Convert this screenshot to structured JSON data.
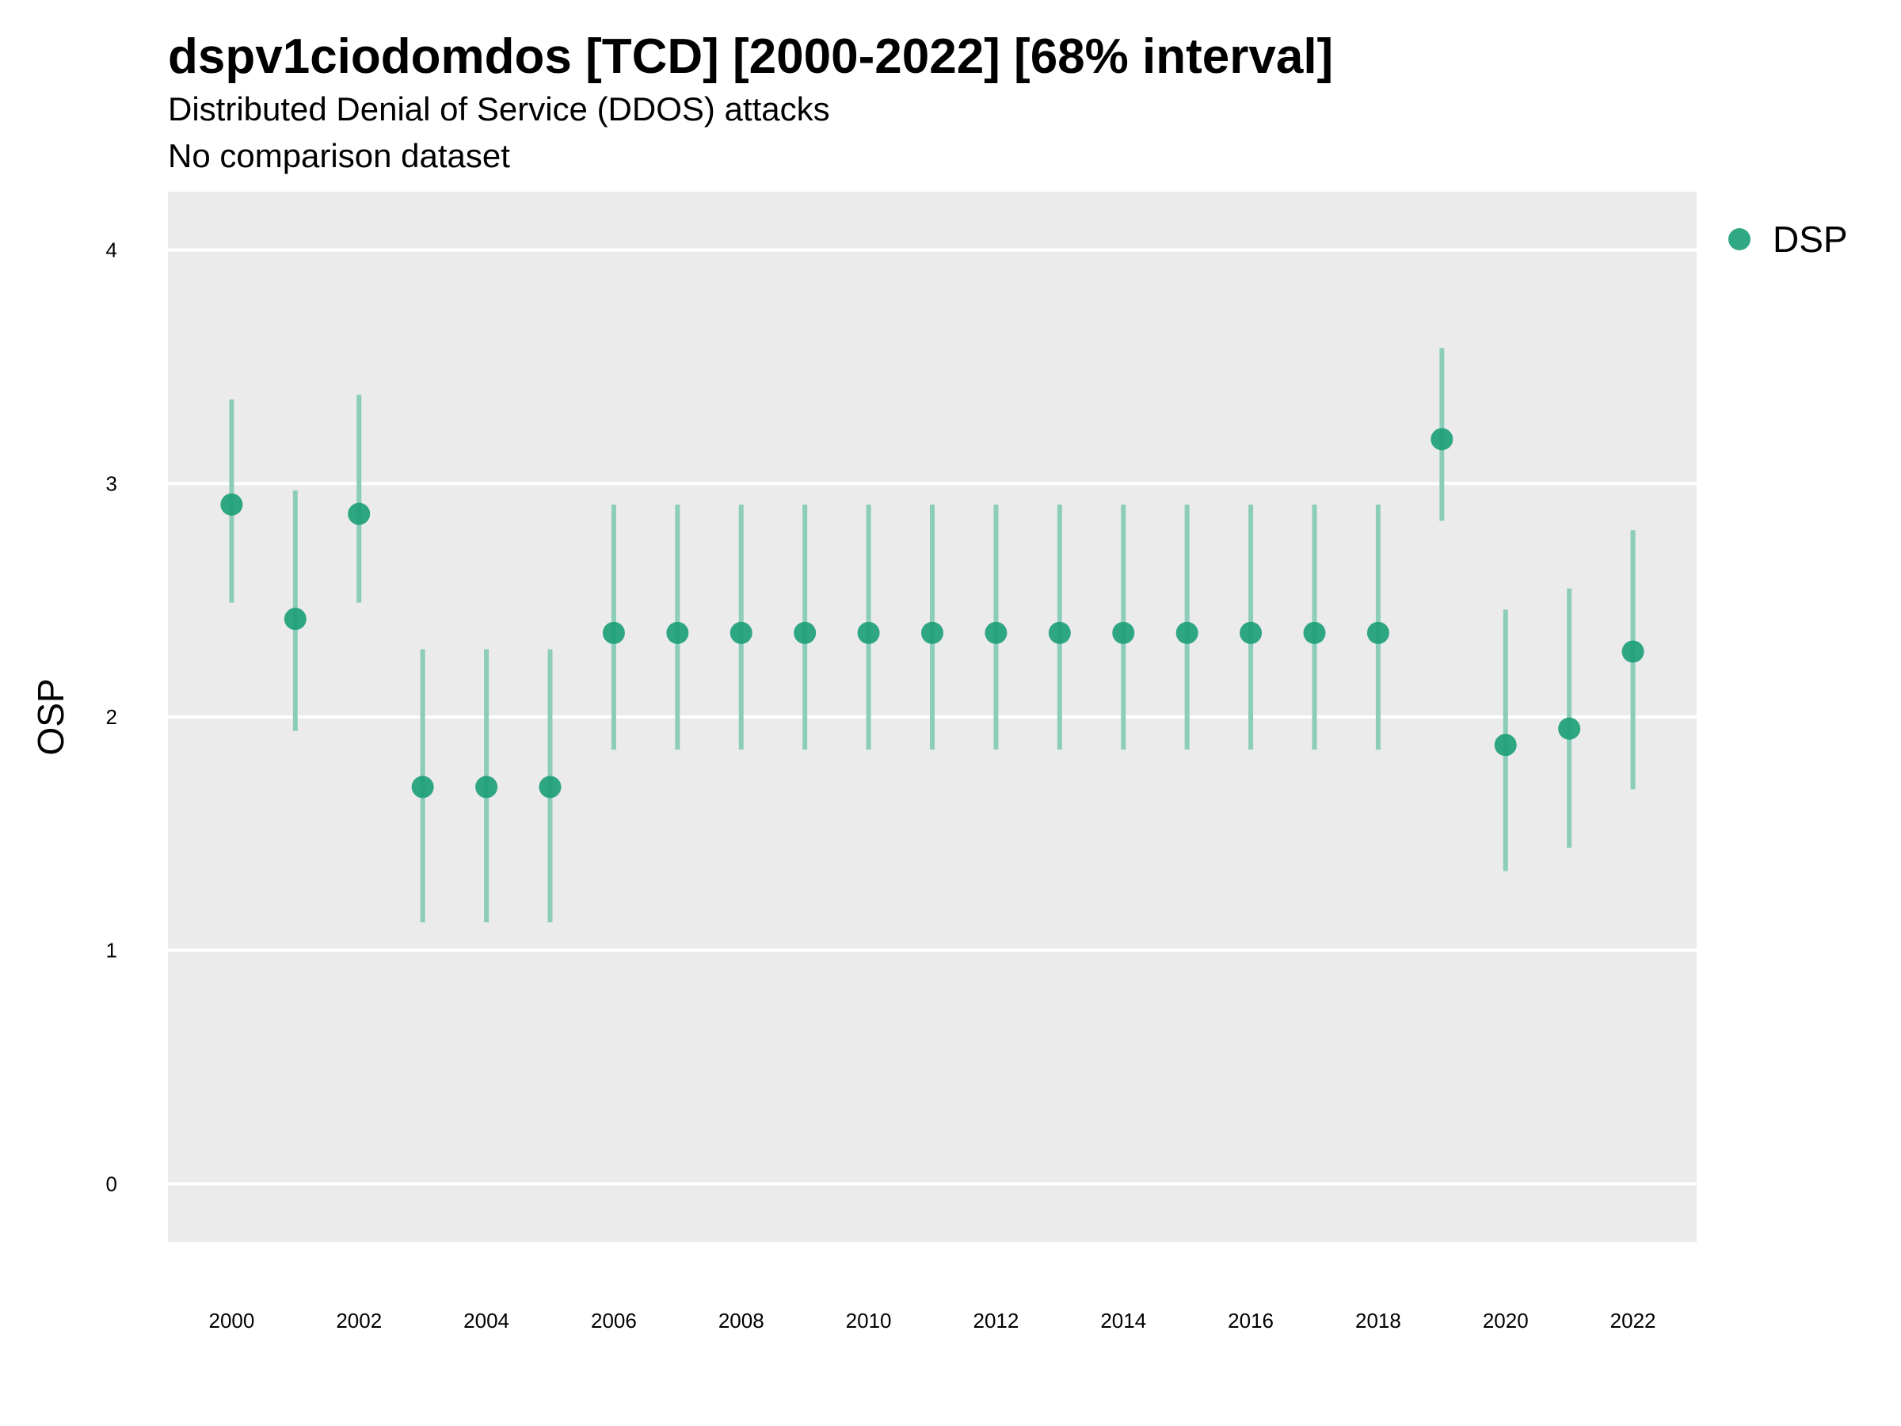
{
  "title": "dspv1ciodomdos [TCD] [2000-2022] [68% interval]",
  "subtitle": "Distributed Denial of Service (DDOS) attacks",
  "caption": "No comparison dataset",
  "colors": {
    "point": "#1b9e77",
    "interval": "#8ccdb9",
    "panel_bg": "#ebebeb",
    "grid": "#ffffff"
  },
  "chart_data": {
    "type": "scatter",
    "title": "dspv1ciodomdos [TCD] [2000-2022] [68% interval]",
    "subtitle": "Distributed Denial of Service (DDOS) attacks",
    "xlabel": "",
    "ylabel": "OSP",
    "ylim": [
      -0.25,
      4.25
    ],
    "xlim": [
      1999,
      2023
    ],
    "y_ticks": [
      0,
      1,
      2,
      3,
      4
    ],
    "x_ticks": [
      2000,
      2002,
      2004,
      2006,
      2008,
      2010,
      2012,
      2014,
      2016,
      2018,
      2020,
      2022
    ],
    "grid": "horizontal",
    "legend_position": "top-right",
    "series": [
      {
        "name": "DSP",
        "x": [
          2000,
          2001,
          2002,
          2003,
          2004,
          2005,
          2006,
          2007,
          2008,
          2009,
          2010,
          2011,
          2012,
          2013,
          2014,
          2015,
          2016,
          2017,
          2018,
          2019,
          2020,
          2021,
          2022
        ],
        "y": [
          2.91,
          2.42,
          2.87,
          1.7,
          1.7,
          1.7,
          2.36,
          2.36,
          2.36,
          2.36,
          2.36,
          2.36,
          2.36,
          2.36,
          2.36,
          2.36,
          2.36,
          2.36,
          2.36,
          3.19,
          1.88,
          1.95,
          2.28
        ],
        "lower": [
          2.49,
          1.94,
          2.49,
          1.12,
          1.12,
          1.12,
          1.86,
          1.86,
          1.86,
          1.86,
          1.86,
          1.86,
          1.86,
          1.86,
          1.86,
          1.86,
          1.86,
          1.86,
          1.86,
          2.84,
          1.34,
          1.44,
          1.69
        ],
        "upper": [
          3.36,
          2.97,
          3.38,
          2.29,
          2.29,
          2.29,
          2.91,
          2.91,
          2.91,
          2.91,
          2.91,
          2.91,
          2.91,
          2.91,
          2.91,
          2.91,
          2.91,
          2.91,
          2.91,
          3.58,
          2.46,
          2.55,
          2.8
        ]
      }
    ]
  }
}
